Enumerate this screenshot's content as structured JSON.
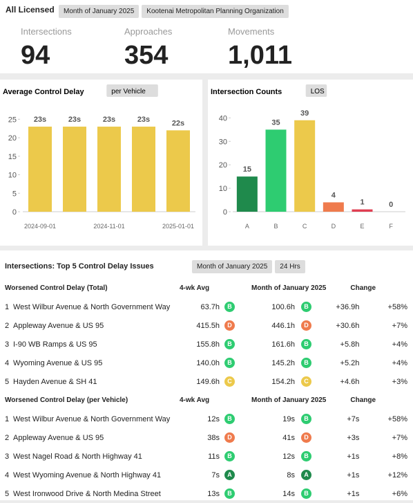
{
  "header": {
    "title": "All Licensed",
    "filters": [
      "Month of January 2025",
      "Kootenai Metropolitan Planning Organization"
    ]
  },
  "stats": [
    {
      "label": "Intersections",
      "value": "94"
    },
    {
      "label": "Approaches",
      "value": "354"
    },
    {
      "label": "Movements",
      "value": "1,011"
    }
  ],
  "chart_data": [
    {
      "type": "bar",
      "title": "Average Control Delay",
      "button": "per Vehicle",
      "categories": [
        "2024-09-01",
        null,
        "2024-11-01",
        null,
        "2025-01-01"
      ],
      "values": [
        23,
        23,
        23,
        23,
        22
      ],
      "value_labels": [
        "23s",
        "23s",
        "23s",
        "23s",
        "22s"
      ],
      "color": "#ecc94b",
      "ylim": [
        0,
        26
      ],
      "yticks": [
        0,
        5,
        10,
        15,
        20,
        25
      ]
    },
    {
      "type": "bar",
      "title": "Intersection Counts",
      "button": "LOS",
      "categories": [
        "A",
        "B",
        "C",
        "D",
        "E",
        "F"
      ],
      "values": [
        15,
        35,
        39,
        4,
        1,
        0
      ],
      "colors": [
        "#1f8a4c",
        "#2ecc71",
        "#ecc94b",
        "#ef7b4d",
        "#e03e52",
        "#999999"
      ],
      "ylim": [
        0,
        41
      ],
      "yticks": [
        0,
        10,
        20,
        30,
        40
      ]
    }
  ],
  "section": {
    "title": "Intersections: Top 5 Control Delay Issues",
    "filters": [
      "Month of January 2025",
      "24 Hrs"
    ]
  },
  "tables": [
    {
      "title": "Worsened Control Delay (Total)",
      "columns": [
        "4-wk Avg",
        "Month of January 2025",
        "Change"
      ],
      "rows": [
        [
          "1",
          "West Wilbur Avenue & North Government Way",
          "63.7h",
          "B",
          "100.6h",
          "B",
          "+36.9h",
          "+58%"
        ],
        [
          "2",
          "Appleway Avenue & US 95",
          "415.5h",
          "D",
          "446.1h",
          "D",
          "+30.6h",
          "+7%"
        ],
        [
          "3",
          "I-90 WB Ramps & US 95",
          "155.8h",
          "B",
          "161.6h",
          "B",
          "+5.8h",
          "+4%"
        ],
        [
          "4",
          "Wyoming Avenue & US 95",
          "140.0h",
          "B",
          "145.2h",
          "B",
          "+5.2h",
          "+4%"
        ],
        [
          "5",
          "Hayden Avenue & SH 41",
          "149.6h",
          "C",
          "154.2h",
          "C",
          "+4.6h",
          "+3%"
        ]
      ]
    },
    {
      "title": "Worsened Control Delay (per Vehicle)",
      "columns": [
        "4-wk Avg",
        "Month of January 2025",
        "Change"
      ],
      "rows": [
        [
          "1",
          "West Wilbur Avenue & North Government Way",
          "12s",
          "B",
          "19s",
          "B",
          "+7s",
          "+58%"
        ],
        [
          "2",
          "Appleway Avenue & US 95",
          "38s",
          "D",
          "41s",
          "D",
          "+3s",
          "+7%"
        ],
        [
          "3",
          "West Nagel Road & North Highway 41",
          "11s",
          "B",
          "12s",
          "B",
          "+1s",
          "+8%"
        ],
        [
          "4",
          "West Wyoming Avenue & North Highway 41",
          "7s",
          "A",
          "8s",
          "A",
          "+1s",
          "+12%"
        ],
        [
          "5",
          "West Ironwood Drive & North Medina Street",
          "13s",
          "B",
          "14s",
          "B",
          "+1s",
          "+6%"
        ]
      ]
    }
  ]
}
